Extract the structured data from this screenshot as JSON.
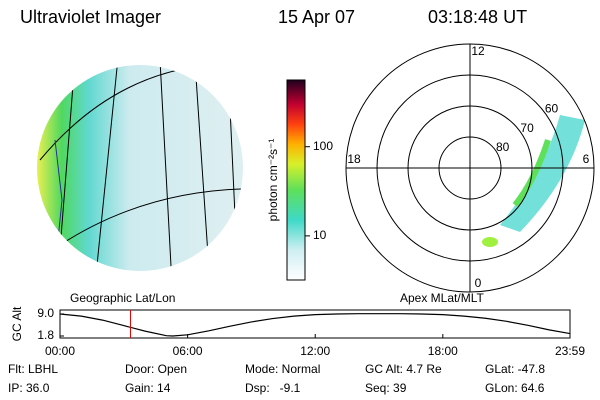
{
  "header": {
    "title": "Ultraviolet Imager",
    "date": "15 Apr 07",
    "time": "03:18:48 UT"
  },
  "colorbar": {
    "label": "photon cm⁻²s⁻¹",
    "scale": "log",
    "lim": [
      3.2,
      560
    ],
    "ticks": [
      10,
      100
    ]
  },
  "geo_image": {
    "caption": "Geographic Lat/Lon"
  },
  "polar_image": {
    "caption": "Apex MLat/MLT",
    "mlt": [
      12,
      18,
      6,
      0
    ],
    "lat_lim": [
      50,
      90
    ],
    "lat_rings": [
      60,
      70,
      80
    ]
  },
  "chart_data": {
    "type": "line",
    "ylabel": "GC Alt",
    "color": "#000000",
    "x": [
      0,
      1,
      2,
      3,
      4,
      5,
      5.3,
      6,
      7,
      8,
      9,
      10,
      11,
      12,
      13,
      14,
      15,
      16,
      17,
      18,
      19,
      20,
      21,
      22,
      23,
      23.98
    ],
    "values": [
      9.0,
      8.3,
      7.0,
      5.2,
      3.4,
      1.9,
      1.8,
      2.2,
      3.5,
      5.0,
      6.4,
      7.5,
      8.3,
      8.8,
      9.0,
      9.1,
      9.1,
      9.1,
      9.0,
      8.8,
      8.3,
      7.6,
      6.6,
      5.3,
      3.8,
      2.6
    ],
    "xlim": [
      0,
      23.98
    ],
    "xticks": [
      {
        "value": 0,
        "label": "00:00"
      },
      {
        "value": 6,
        "label": "06:00"
      },
      {
        "value": 12,
        "label": "12:00"
      },
      {
        "value": 18,
        "label": "18:00"
      },
      {
        "value": 23.98,
        "label": "23:59"
      }
    ],
    "ylim": [
      1.15,
      10.3
    ],
    "yticks": [
      {
        "value": 9,
        "label": "9.0"
      },
      {
        "value": 1.8,
        "label": "1.8"
      }
    ]
  },
  "info": {
    "rows": [
      [
        "Flt: LBHL",
        "Door: Open",
        "Mode: Normal",
        "GC Alt: 4.7 Re",
        "GLat: -47.8"
      ],
      [
        "IP: 36.0",
        "Gain: 14",
        "Dsp:   -9.1",
        "Seq: 39",
        "GLon: 64.6"
      ]
    ]
  }
}
